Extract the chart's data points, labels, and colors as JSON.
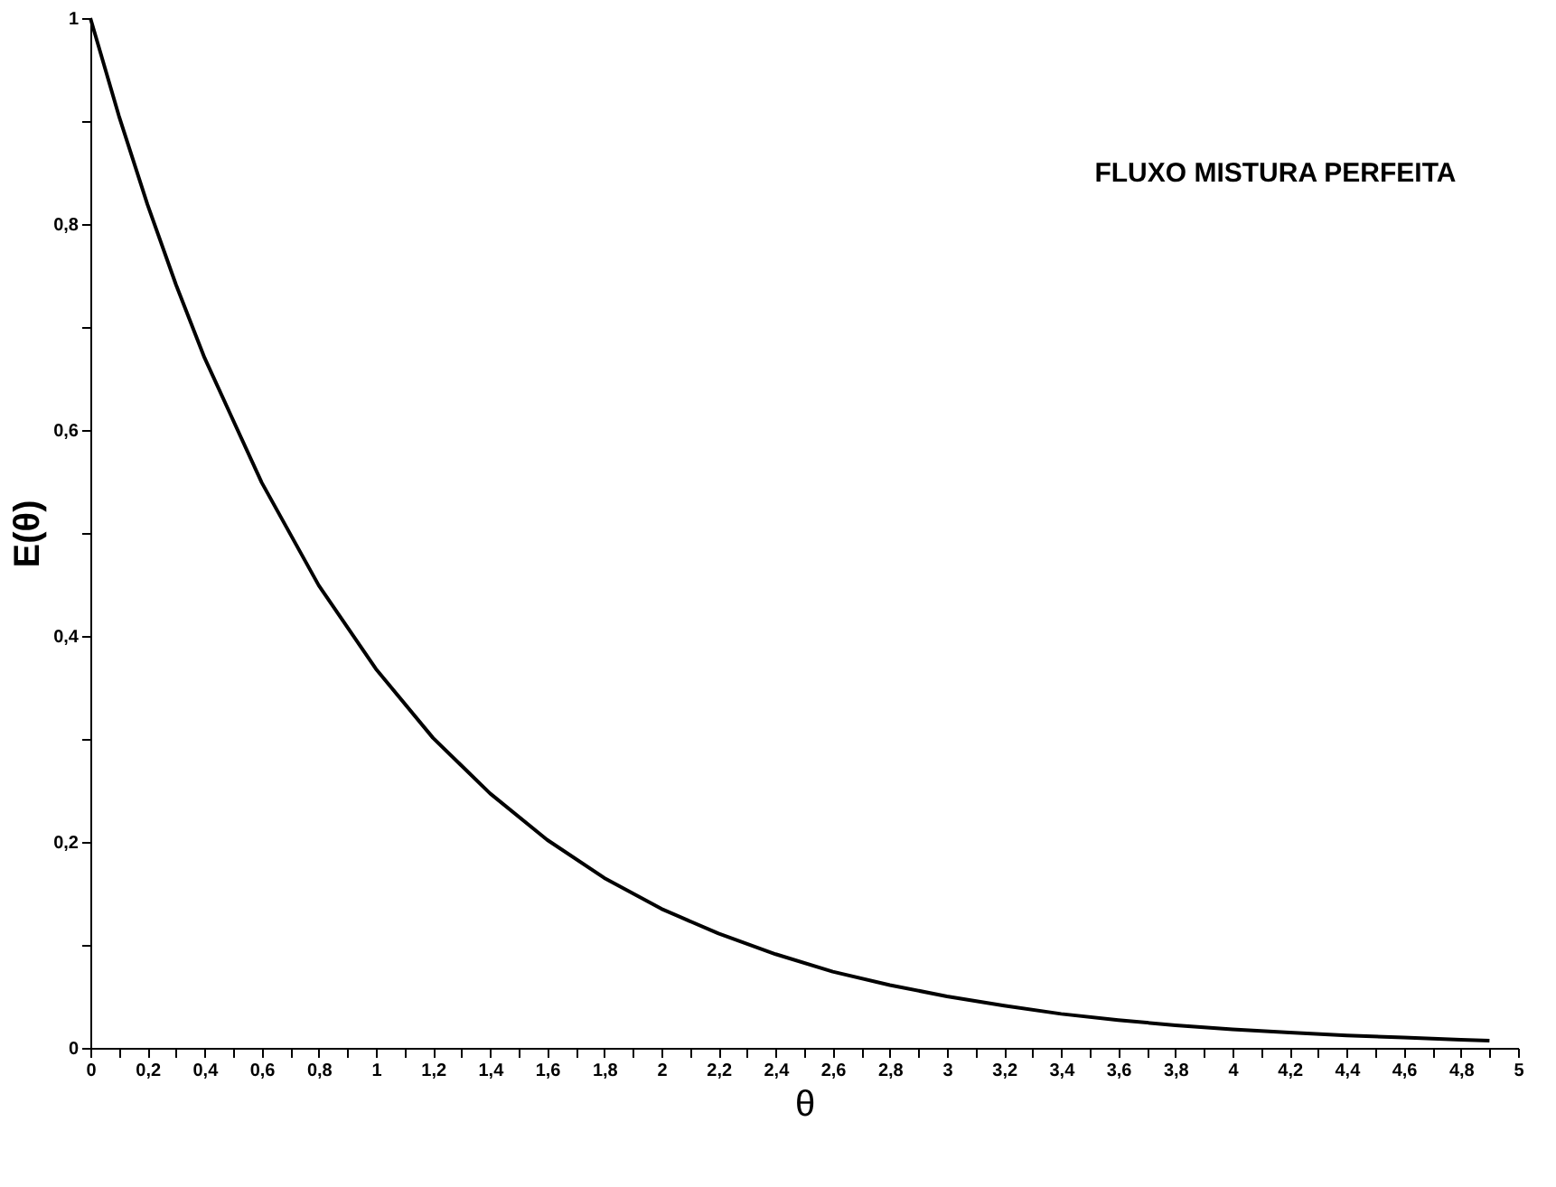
{
  "chart_data": {
    "type": "line",
    "xlabel": "θ",
    "ylabel": "E(θ)",
    "annotations": [
      "FLUXO MISTURA PERFEITA"
    ],
    "x": [
      0,
      0.1,
      0.2,
      0.3,
      0.4,
      0.6,
      0.8,
      1,
      1.2,
      1.4,
      1.6,
      1.8,
      2,
      2.2,
      2.4,
      2.6,
      2.8,
      3,
      3.2,
      3.4,
      3.6,
      3.8,
      4,
      4.2,
      4.4,
      4.6,
      4.8,
      4.9
    ],
    "series": [
      {
        "color": "#000000",
        "values": [
          1,
          0.905,
          0.819,
          0.741,
          0.67,
          0.549,
          0.449,
          0.368,
          0.301,
          0.247,
          0.202,
          0.165,
          0.135,
          0.111,
          0.091,
          0.074,
          0.061,
          0.05,
          0.041,
          0.033,
          0.027,
          0.022,
          0.018,
          0.015,
          0.012,
          0.01,
          0.008,
          0.007
        ]
      }
    ],
    "xlim": [
      0,
      5
    ],
    "ylim": [
      0,
      1
    ],
    "xticks": [
      0,
      {
        "value": 0.1,
        "label": null
      },
      {
        "value": 0.2,
        "label": "0,2"
      },
      {
        "value": 0.3,
        "label": null
      },
      {
        "value": 0.4,
        "label": "0,4"
      },
      {
        "value": 0.5,
        "label": null
      },
      {
        "value": 0.6,
        "label": "0,6"
      },
      {
        "value": 0.7,
        "label": null
      },
      {
        "value": 0.8,
        "label": "0,8"
      },
      {
        "value": 0.9,
        "label": null
      },
      1,
      {
        "value": 1.1,
        "label": null
      },
      {
        "value": 1.2,
        "label": "1,2"
      },
      {
        "value": 1.3,
        "label": null
      },
      {
        "value": 1.4,
        "label": "1,4"
      },
      {
        "value": 1.5,
        "label": null
      },
      {
        "value": 1.6,
        "label": "1,6"
      },
      {
        "value": 1.7,
        "label": null
      },
      {
        "value": 1.8,
        "label": "1,8"
      },
      {
        "value": 1.9,
        "label": null
      },
      2,
      {
        "value": 2.1,
        "label": null
      },
      {
        "value": 2.2,
        "label": "2,2"
      },
      {
        "value": 2.3,
        "label": null
      },
      {
        "value": 2.4,
        "label": "2,4"
      },
      {
        "value": 2.5,
        "label": null
      },
      {
        "value": 2.6,
        "label": "2,6"
      },
      {
        "value": 2.7,
        "label": null
      },
      {
        "value": 2.8,
        "label": "2,8"
      },
      {
        "value": 2.9,
        "label": null
      },
      3,
      {
        "value": 3.1,
        "label": null
      },
      {
        "value": 3.2,
        "label": "3,2"
      },
      {
        "value": 3.3,
        "label": null
      },
      {
        "value": 3.4,
        "label": "3,4"
      },
      {
        "value": 3.5,
        "label": null
      },
      {
        "value": 3.6,
        "label": "3,6"
      },
      {
        "value": 3.7,
        "label": null
      },
      {
        "value": 3.8,
        "label": "3,8"
      },
      {
        "value": 3.9,
        "label": null
      },
      4,
      {
        "value": 4.1,
        "label": null
      },
      {
        "value": 4.2,
        "label": "4,2"
      },
      {
        "value": 4.3,
        "label": null
      },
      {
        "value": 4.4,
        "label": "4,4"
      },
      {
        "value": 4.5,
        "label": null
      },
      {
        "value": 4.6,
        "label": "4,6"
      },
      {
        "value": 4.7,
        "label": null
      },
      {
        "value": 4.8,
        "label": "4,8"
      },
      {
        "value": 4.9,
        "label": null
      },
      5
    ],
    "yticks": [
      0,
      {
        "value": 0.1,
        "label": null
      },
      {
        "value": 0.2,
        "label": "0,2"
      },
      {
        "value": 0.3,
        "label": null
      },
      {
        "value": 0.4,
        "label": "0,4"
      },
      {
        "value": 0.5,
        "label": null
      },
      {
        "value": 0.6,
        "label": "0,6"
      },
      {
        "value": 0.7,
        "label": null
      },
      {
        "value": 0.8,
        "label": "0,8"
      },
      {
        "value": 0.9,
        "label": null
      },
      1
    ],
    "grid": false,
    "marker": "none",
    "line_style": "solid"
  }
}
